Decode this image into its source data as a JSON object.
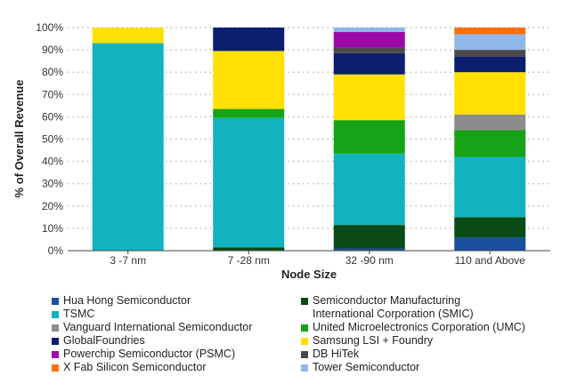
{
  "chart_data": {
    "type": "bar",
    "stacked": true,
    "xlabel": "Node Size",
    "ylabel": "% of Overall Revenue",
    "ylim": [
      0,
      100
    ],
    "yticks": [
      "0%",
      "10%",
      "20%",
      "30%",
      "40%",
      "50%",
      "60%",
      "70%",
      "80%",
      "90%",
      "100%"
    ],
    "grid": "dotted horizontal",
    "legend_position": "bottom",
    "categories": [
      "3 -7 nm",
      "7 -28 nm",
      "32 -90 nm",
      "110 and Above"
    ],
    "series": [
      {
        "name": "Hua Hong Semiconductor",
        "color": "#1a4f9c",
        "values": [
          0,
          0,
          1,
          6
        ]
      },
      {
        "name": "Semiconductor Manufacturing International Corporation (SMIC)",
        "color": "#0a4a14",
        "values": [
          0,
          1.5,
          10.5,
          9
        ]
      },
      {
        "name": "TSMC",
        "color": "#12b3bf",
        "values": [
          93,
          58,
          32,
          27
        ]
      },
      {
        "name": "United Microelectronics Corporation (UMC)",
        "color": "#17a317",
        "values": [
          0,
          4,
          15,
          12
        ]
      },
      {
        "name": "Vanguard International Semiconductor",
        "color": "#8c8c8c",
        "values": [
          0,
          0,
          0,
          7
        ]
      },
      {
        "name": "Samsung LSI + Foundry",
        "color": "#ffe000",
        "values": [
          7,
          26,
          20.5,
          19
        ]
      },
      {
        "name": "GlobalFoundries",
        "color": "#0c1f6e",
        "values": [
          0,
          10.5,
          9.5,
          7
        ]
      },
      {
        "name": "DB HiTek",
        "color": "#4a4a4a",
        "values": [
          0,
          0,
          2.5,
          3
        ]
      },
      {
        "name": "Powerchip Semiconductor (PSMC)",
        "color": "#9b0aa8",
        "values": [
          0,
          0,
          7,
          0
        ]
      },
      {
        "name": "Tower Semiconductor",
        "color": "#8fb8e8",
        "values": [
          0,
          0,
          2,
          7
        ]
      },
      {
        "name": "X Fab Silicon Semiconductor",
        "color": "#ff7010",
        "values": [
          0,
          0,
          0,
          3
        ]
      }
    ]
  },
  "legend": {
    "left": [
      "Hua Hong Semiconductor",
      "TSMC",
      "Vanguard International Semiconductor",
      "GlobalFoundries",
      "Powerchip Semiconductor (PSMC)",
      "X Fab Silicon Semiconductor"
    ],
    "right": [
      "Semiconductor Manufacturing",
      "International Corporation (SMIC)",
      "United Microelectronics Corporation (UMC)",
      "Samsung LSI + Foundry",
      "DB HiTek",
      "Tower Semiconductor"
    ]
  },
  "colors": {
    "hua_hong": "#1a4f9c",
    "tsmc": "#12b3bf",
    "vanguard": "#8c8c8c",
    "globalfoundries": "#0c1f6e",
    "psmc": "#9b0aa8",
    "xfab": "#ff7010",
    "smic": "#0a4a14",
    "umc": "#17a317",
    "samsung": "#ffe000",
    "dbhitek": "#4a4a4a",
    "tower": "#8fb8e8"
  }
}
